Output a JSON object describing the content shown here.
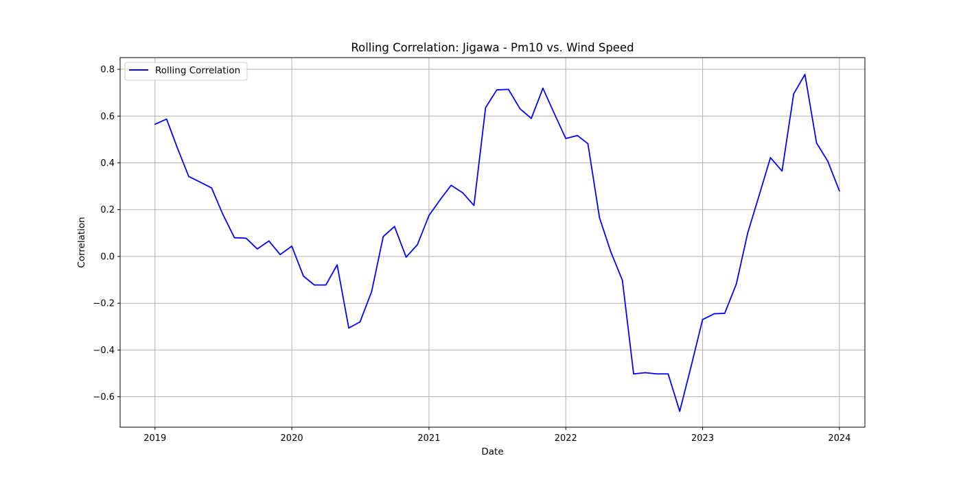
{
  "chart_data": {
    "type": "line",
    "title": "Rolling Correlation: Jigawa - Pm10 vs. Wind Speed",
    "xlabel": "Date",
    "ylabel": "Correlation",
    "xlim": [
      "2018-09-30",
      "2024-03-09"
    ],
    "ylim": [
      -0.73,
      0.85
    ],
    "x_ticks": [
      "2019-01-01",
      "2020-01-01",
      "2021-01-01",
      "2022-01-01",
      "2023-01-01",
      "2024-01-01"
    ],
    "x_tick_labels": [
      "2019",
      "2020",
      "2021",
      "2022",
      "2023",
      "2024"
    ],
    "y_ticks": [
      -0.6,
      -0.4,
      -0.2,
      0.0,
      0.2,
      0.4,
      0.6,
      0.8
    ],
    "y_tick_labels": [
      "−0.6",
      "−0.4",
      "−0.2",
      "0.0",
      "0.2",
      "0.4",
      "0.6",
      "0.8"
    ],
    "grid": true,
    "legend": {
      "placement": "top-left",
      "entries": [
        "Rolling Correlation"
      ]
    },
    "colors": {
      "line": "#0000ff",
      "grid": "#b0b0b0",
      "axes": "#000000"
    },
    "series": [
      {
        "name": "Rolling Correlation",
        "x": [
          "2019-01-01",
          "2019-02-01",
          "2019-03-01",
          "2019-04-01",
          "2019-05-01",
          "2019-06-01",
          "2019-07-01",
          "2019-08-01",
          "2019-09-01",
          "2019-10-01",
          "2019-11-01",
          "2019-12-01",
          "2020-01-01",
          "2020-02-01",
          "2020-03-01",
          "2020-04-01",
          "2020-05-01",
          "2020-06-01",
          "2020-07-01",
          "2020-08-01",
          "2020-09-01",
          "2020-10-01",
          "2020-11-01",
          "2020-12-01",
          "2021-01-01",
          "2021-02-01",
          "2021-03-01",
          "2021-04-01",
          "2021-05-01",
          "2021-06-01",
          "2021-07-01",
          "2021-08-01",
          "2021-09-01",
          "2021-10-01",
          "2021-11-01",
          "2021-12-01",
          "2022-01-01",
          "2022-02-01",
          "2022-03-01",
          "2022-04-01",
          "2022-05-01",
          "2022-06-01",
          "2022-07-01",
          "2022-08-01",
          "2022-09-01",
          "2022-10-01",
          "2022-11-01",
          "2022-12-01",
          "2023-01-01",
          "2023-02-01",
          "2023-03-01",
          "2023-04-01",
          "2023-05-01",
          "2023-06-01",
          "2023-07-01",
          "2023-08-01",
          "2023-09-01",
          "2023-10-01",
          "2023-11-01",
          "2023-12-01",
          "2024-01-01"
        ],
        "y": [
          0.565,
          0.587,
          0.467,
          0.342,
          0.318,
          0.293,
          0.18,
          0.08,
          0.078,
          0.032,
          0.066,
          0.008,
          0.044,
          -0.084,
          -0.122,
          -0.122,
          -0.036,
          -0.306,
          -0.28,
          -0.15,
          0.085,
          0.128,
          -0.003,
          0.05,
          0.175,
          0.245,
          0.304,
          0.272,
          0.218,
          0.636,
          0.712,
          0.714,
          0.631,
          0.59,
          0.719,
          0.612,
          0.504,
          0.517,
          0.482,
          0.165,
          0.02,
          -0.102,
          -0.502,
          -0.497,
          -0.502,
          -0.502,
          -0.662,
          -0.472,
          -0.27,
          -0.245,
          -0.243,
          -0.118,
          0.098,
          0.262,
          0.422,
          0.365,
          0.695,
          0.778,
          0.485,
          0.407,
          0.28
        ]
      }
    ]
  }
}
